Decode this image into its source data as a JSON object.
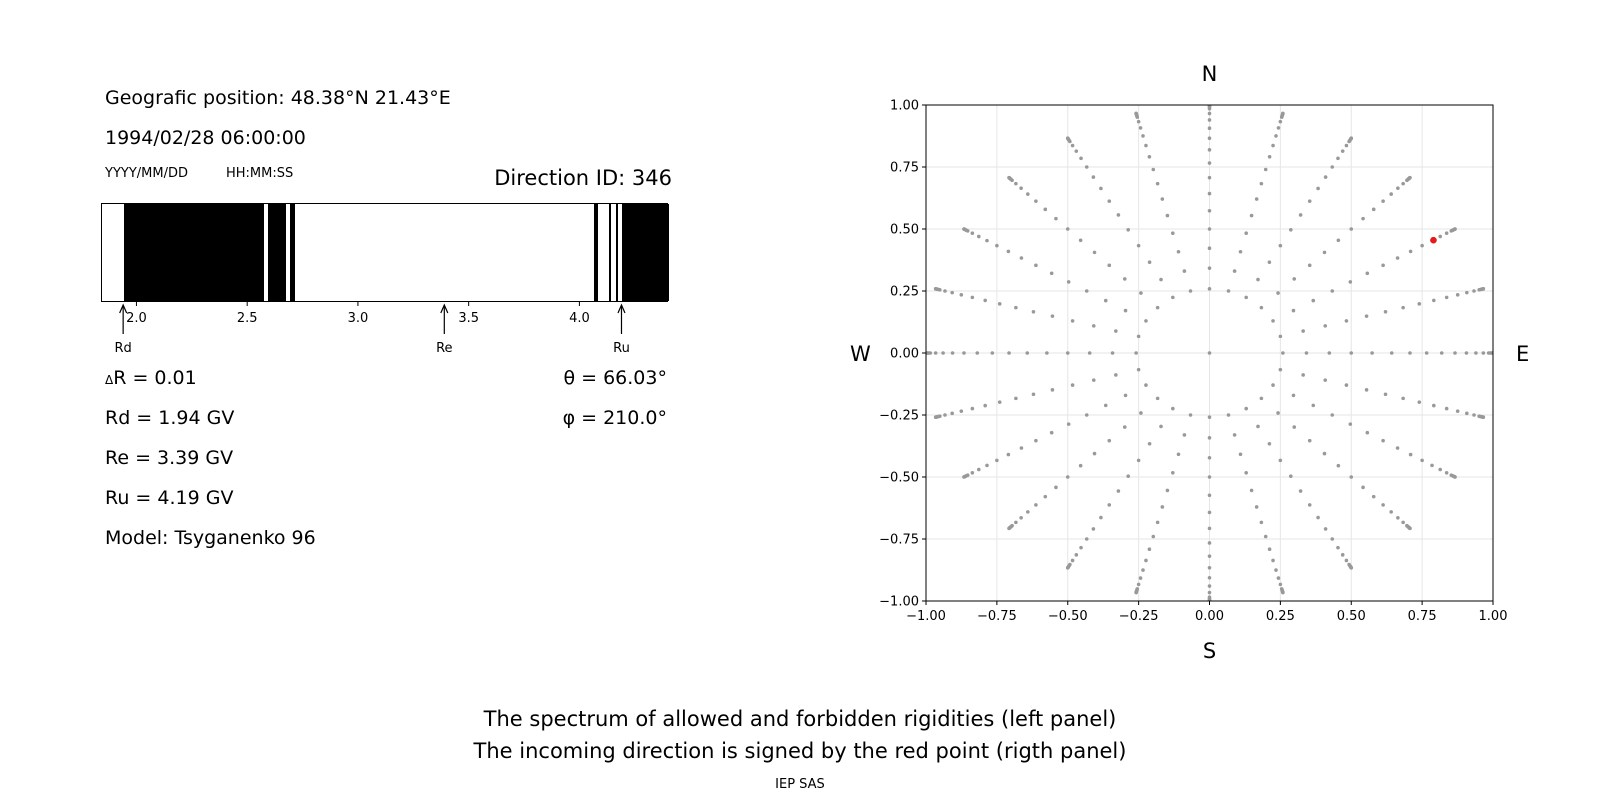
{
  "header": {
    "position": "Geografic position: 48.38°N 21.43°E",
    "datetime": "1994/02/28 06:00:00",
    "date_format": "YYYY/MM/DD",
    "time_format": "HH:MM:SS",
    "direction_id": "Direction ID: 346"
  },
  "results": {
    "delta_r": "R = 0.01",
    "delta_symbol": "Δ",
    "rd": "Rd = 1.94 GV",
    "re": "Re = 3.39 GV",
    "ru": "Ru = 4.19 GV",
    "model": "Model: Tsyganenko 96",
    "theta": "θ = 66.03°",
    "phi": "φ = 210.0°"
  },
  "footer": {
    "line1": "The spectrum of allowed and forbidden rigidities (left panel)",
    "line2": "The incoming direction is signed by the red point (rigth panel)",
    "credit": "IEP SAS"
  },
  "chart_data": [
    {
      "type": "bar",
      "description_role": "rigidity spectrum (white = allowed, black = forbidden)",
      "xlim": [
        1.84,
        4.4
      ],
      "xticks": [
        2.0,
        2.5,
        3.0,
        3.5,
        4.0
      ],
      "xtick_labels": [
        "2.0",
        "2.5",
        "3.0",
        "3.5",
        "4.0"
      ],
      "forbidden_bands": [
        [
          1.94,
          2.57
        ],
        [
          2.59,
          2.67
        ],
        [
          2.69,
          2.71
        ],
        [
          4.06,
          4.08
        ],
        [
          4.13,
          4.14
        ],
        [
          4.16,
          4.17
        ],
        [
          4.19,
          4.4
        ]
      ],
      "markers": [
        {
          "label": "Rd",
          "value": 1.94
        },
        {
          "label": "Re",
          "value": 3.39
        },
        {
          "label": "Ru",
          "value": 4.19
        }
      ]
    },
    {
      "type": "scatter",
      "xlim": [
        -1.0,
        1.0
      ],
      "ylim": [
        -1.0,
        1.0
      ],
      "xticks": [
        "−1.00",
        "−0.75",
        "−0.50",
        "−0.25",
        "0.00",
        "0.25",
        "0.50",
        "0.75",
        "1.00"
      ],
      "yticks": [
        "−1.00",
        "−0.75",
        "−0.50",
        "−0.25",
        "0.00",
        "0.25",
        "0.50",
        "0.75",
        "1.00"
      ],
      "grid": true,
      "compass": {
        "north": "N",
        "south": "S",
        "west": "W",
        "east": "E"
      },
      "grid_directions": {
        "zenith_angles_deg": [
          0,
          15,
          25,
          30,
          35,
          40,
          45,
          50,
          55,
          60,
          65,
          70,
          75,
          80,
          82,
          84,
          86,
          88,
          90
        ],
        "azimuth_step_deg": 15,
        "point_color": "#999999"
      },
      "highlight": {
        "x": 0.79,
        "y": 0.455,
        "color": "#e41a1c"
      }
    }
  ]
}
